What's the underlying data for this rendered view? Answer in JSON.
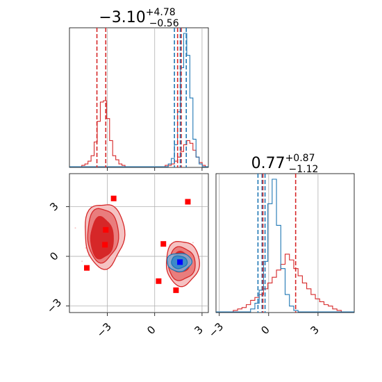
{
  "chart_data": {
    "type": "corner",
    "panels": [
      {
        "id": "hist-x",
        "type": "histogram",
        "title": {
          "value": "−3.10",
          "upper": "+4.78",
          "lower": "−0.56"
        },
        "xlim": [
          -5.4,
          3.4
        ],
        "xticks": [
          "-3",
          "0",
          "3"
        ],
        "series": [
          {
            "color": "#d62728",
            "counts": [
              0,
              0,
              0,
              0,
              0.01,
              0.02,
              0.04,
              0.08,
              0.18,
              0.33,
              0.47,
              0.48,
              0.35,
              0.19,
              0.08,
              0.05,
              0.02,
              0.01,
              0,
              0,
              0,
              0,
              0,
              0,
              0,
              0,
              0,
              0,
              0,
              0,
              0,
              0.01,
              0.01,
              0.02,
              0.04,
              0.07,
              0.11,
              0.16,
              0.19,
              0.17,
              0.12,
              0.07,
              0.03,
              0.01,
              0
            ]
          },
          {
            "color": "#1f77b4",
            "counts": [
              0,
              0,
              0,
              0,
              0,
              0,
              0,
              0,
              0,
              0,
              0,
              0,
              0,
              0,
              0,
              0,
              0,
              0,
              0,
              0,
              0,
              0,
              0,
              0,
              0,
              0,
              0,
              0,
              0,
              0,
              0,
              0,
              0.02,
              0.06,
              0.16,
              0.4,
              0.72,
              0.97,
              0.81,
              0.5,
              0.2,
              0.07,
              0.02,
              0,
              0
            ]
          }
        ],
        "quantile_lines": [
          {
            "color": "#d62728",
            "values": [
              -3.66,
              -3.1,
              1.68
            ]
          },
          {
            "color": "#1f77b4",
            "values": [
              1.25,
              1.62,
              2.0
            ]
          },
          {
            "color": "#d62728",
            "values": [
              1.45
            ]
          }
        ]
      },
      {
        "id": "hist-y",
        "type": "histogram",
        "title": {
          "value": "0.77",
          "upper": "+0.87",
          "lower": "−1.12"
        },
        "xlim": [
          -3.2,
          5.2
        ],
        "xticks": [
          "-3",
          "0",
          "3"
        ],
        "series": [
          {
            "color": "#d62728",
            "counts": [
              0,
              0,
              0,
              0,
              0.01,
              0.02,
              0.03,
              0.05,
              0.08,
              0.1,
              0.12,
              0.16,
              0.2,
              0.24,
              0.29,
              0.33,
              0.4,
              0.36,
              0.3,
              0.25,
              0.2,
              0.16,
              0.12,
              0.09,
              0.07,
              0.05,
              0.04,
              0.02,
              0.01,
              0,
              0,
              0
            ]
          },
          {
            "color": "#1f77b4",
            "counts": [
              0,
              0,
              0,
              0,
              0,
              0,
              0,
              0,
              0.02,
              0.06,
              0.15,
              0.35,
              0.75,
              0.92,
              0.6,
              0.3,
              0.12,
              0.04,
              0.01,
              0,
              0,
              0,
              0,
              0,
              0,
              0,
              0,
              0,
              0,
              0,
              0,
              0
            ]
          }
        ],
        "quantile_lines": [
          {
            "color": "#1f77b4",
            "values": [
              -0.65,
              -0.4,
              -0.22
            ]
          },
          {
            "color": "#d62728",
            "values": [
              -0.35,
              1.64
            ]
          }
        ]
      },
      {
        "id": "scatter-xy",
        "type": "contour",
        "xlim": [
          -5.4,
          3.4
        ],
        "ylim": [
          -3.4,
          5.0
        ],
        "xticks": [
          "-3",
          "0",
          "3"
        ],
        "yticks": [
          "-3",
          "0",
          "3"
        ],
        "markers": [
          {
            "x": -2.6,
            "y": 3.5
          },
          {
            "x": 2.1,
            "y": 3.3
          },
          {
            "x": -3.1,
            "y": 1.6
          },
          {
            "x": -3.15,
            "y": 0.7
          },
          {
            "x": 0.55,
            "y": 0.75
          },
          {
            "x": -4.3,
            "y": -0.7
          },
          {
            "x": 0.25,
            "y": -1.5
          },
          {
            "x": 1.35,
            "y": -2.05
          }
        ],
        "truth": {
          "x": 1.6,
          "y": -0.35
        },
        "colors": {
          "red": "#d62728",
          "blue": "#1f77b4",
          "marker_red": "#ff0000",
          "marker_blue": "#0000ff",
          "pink": "#f2a9a9"
        }
      }
    ]
  }
}
